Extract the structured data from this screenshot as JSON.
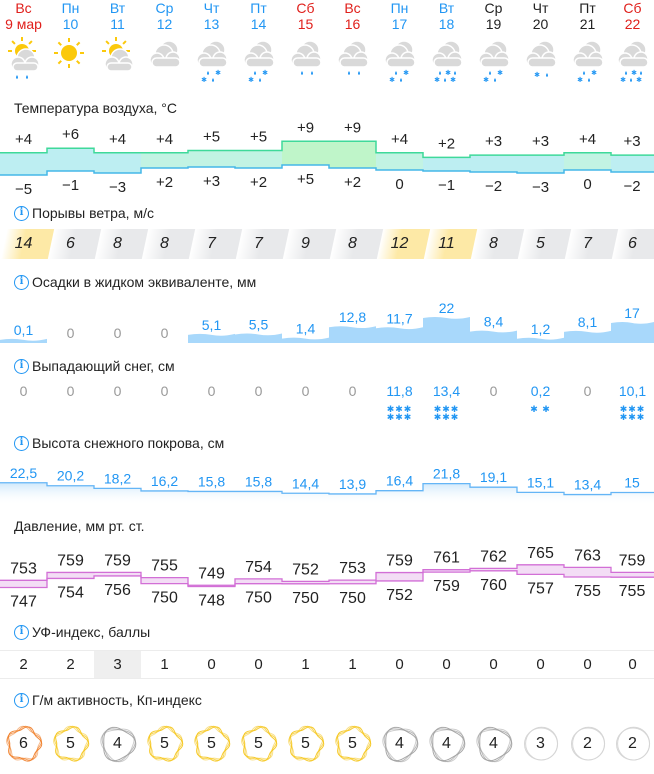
{
  "days": [
    {
      "dow": "Вс",
      "date": "9 мар",
      "color": "red",
      "weather": "partly-cloudy-rain-icon"
    },
    {
      "dow": "Пн",
      "date": "10",
      "color": "blue",
      "weather": "sun-icon"
    },
    {
      "dow": "Вт",
      "date": "11",
      "color": "blue",
      "weather": "partly-cloudy-icon"
    },
    {
      "dow": "Ср",
      "date": "12",
      "color": "blue",
      "weather": "cloudy-icon"
    },
    {
      "dow": "Чт",
      "date": "13",
      "color": "blue",
      "weather": "cloudy-rain-snow-icon"
    },
    {
      "dow": "Пт",
      "date": "14",
      "color": "blue",
      "weather": "cloudy-rain-snow-icon"
    },
    {
      "dow": "Сб",
      "date": "15",
      "color": "red",
      "weather": "cloudy-rain-icon"
    },
    {
      "dow": "Вс",
      "date": "16",
      "color": "red",
      "weather": "cloudy-rain-icon"
    },
    {
      "dow": "Пн",
      "date": "17",
      "color": "blue",
      "weather": "cloudy-rain-snow-icon"
    },
    {
      "dow": "Вт",
      "date": "18",
      "color": "blue",
      "weather": "cloudy-heavy-rain-snow-icon"
    },
    {
      "dow": "Ср",
      "date": "19",
      "color": "black",
      "weather": "cloudy-rain-snow-icon"
    },
    {
      "dow": "Чт",
      "date": "20",
      "color": "black",
      "weather": "cloudy-light-snow-icon"
    },
    {
      "dow": "Пт",
      "date": "21",
      "color": "black",
      "weather": "cloudy-rain-snow-icon"
    },
    {
      "dow": "Сб",
      "date": "22",
      "color": "red",
      "weather": "cloudy-heavy-rain-snow-icon"
    }
  ],
  "sections": {
    "temperature": "Температура воздуха, °C",
    "wind": "Порывы ветра, м/с",
    "precip": "Осадки в жидком эквиваленте, мм",
    "snowfall": "Выпадающий снег, см",
    "snow_depth": "Высота снежного покрова, см",
    "pressure": "Давление, мм рт. ст.",
    "uv": "УФ-индекс, баллы",
    "kp": "Г/м активность, Кп-индекс"
  },
  "colors": {
    "red": "#e0201c",
    "blue": "#2196f3",
    "black": "#222222",
    "wind_high": "#fde9a6",
    "wind_normal": "#e8e9eb",
    "precip_fill": "#a8d8fb",
    "pressure_line": "#d26fd6",
    "pressure_fill": "#f3ddf5",
    "kp_orange": "#f07b22",
    "kp_yellow": "#f5c518",
    "kp_gray": "#9e9e9e",
    "kp_light": "#d6d6d6"
  },
  "chart_data": [
    {
      "type": "area",
      "title": "Температура воздуха, °C",
      "categories": [
        "9 мар",
        "10",
        "11",
        "12",
        "13",
        "14",
        "15",
        "16",
        "17",
        "18",
        "19",
        "20",
        "21",
        "22"
      ],
      "series": [
        {
          "name": "max",
          "values": [
            4,
            6,
            4,
            4,
            5,
            5,
            9,
            9,
            4,
            2,
            3,
            3,
            4,
            3
          ],
          "labels": [
            "+4",
            "+6",
            "+4",
            "+4",
            "+5",
            "+5",
            "+9",
            "+9",
            "+4",
            "+2",
            "+3",
            "+3",
            "+4",
            "+3"
          ]
        },
        {
          "name": "min",
          "values": [
            -5,
            -1,
            -3,
            2,
            3,
            2,
            5,
            2,
            0,
            -1,
            -2,
            -3,
            0,
            -2
          ],
          "labels": [
            "−5",
            "−1",
            "−3",
            "+2",
            "+3",
            "+2",
            "+5",
            "+2",
            "0",
            "−1",
            "−2",
            "−3",
            "0",
            "−2"
          ]
        }
      ]
    },
    {
      "type": "table",
      "title": "Порывы ветра, м/с",
      "categories": [
        "9 мар",
        "10",
        "11",
        "12",
        "13",
        "14",
        "15",
        "16",
        "17",
        "18",
        "19",
        "20",
        "21",
        "22"
      ],
      "values": [
        14,
        6,
        8,
        8,
        7,
        7,
        9,
        8,
        12,
        11,
        8,
        5,
        7,
        6
      ],
      "highlight": [
        true,
        false,
        false,
        false,
        false,
        false,
        false,
        false,
        true,
        true,
        false,
        false,
        false,
        false
      ]
    },
    {
      "type": "bar",
      "title": "Осадки в жидком эквиваленте, мм",
      "categories": [
        "9 мар",
        "10",
        "11",
        "12",
        "13",
        "14",
        "15",
        "16",
        "17",
        "18",
        "19",
        "20",
        "21",
        "22"
      ],
      "values": [
        0.1,
        0,
        0,
        0,
        5.1,
        5.5,
        1.4,
        12.8,
        11.7,
        22,
        8.4,
        1.2,
        8.1,
        17
      ],
      "labels": [
        "0,1",
        "0",
        "0",
        "0",
        "5,1",
        "5,5",
        "1,4",
        "12,8",
        "11,7",
        "22",
        "8,4",
        "1,2",
        "8,1",
        "17"
      ]
    },
    {
      "type": "table",
      "title": "Выпадающий снег, см",
      "categories": [
        "9 мар",
        "10",
        "11",
        "12",
        "13",
        "14",
        "15",
        "16",
        "17",
        "18",
        "19",
        "20",
        "21",
        "22"
      ],
      "values": [
        0,
        0,
        0,
        0,
        0,
        0,
        0,
        0,
        11.8,
        13.4,
        0,
        0.2,
        0,
        10.1
      ],
      "labels": [
        "0",
        "0",
        "0",
        "0",
        "0",
        "0",
        "0",
        "0",
        "11,8",
        "13,4",
        "0",
        "0,2",
        "0",
        "10,1"
      ],
      "flakes": [
        "",
        "",
        "",
        "",
        "",
        "",
        "",
        "",
        "***\n***",
        "***\n***",
        "",
        "* *",
        "",
        "***\n***"
      ]
    },
    {
      "type": "line",
      "title": "Высота снежного покрова, см",
      "categories": [
        "9 мар",
        "10",
        "11",
        "12",
        "13",
        "14",
        "15",
        "16",
        "17",
        "18",
        "19",
        "20",
        "21",
        "22"
      ],
      "values": [
        22.5,
        20.2,
        18.2,
        16.2,
        15.8,
        15.8,
        14.4,
        13.9,
        16.4,
        21.8,
        19.1,
        15.1,
        13.4,
        15
      ],
      "labels": [
        "22,5",
        "20,2",
        "18,2",
        "16,2",
        "15,8",
        "15,8",
        "14,4",
        "13,9",
        "16,4",
        "21,8",
        "19,1",
        "15,1",
        "13,4",
        "15"
      ]
    },
    {
      "type": "area",
      "title": "Давление, мм рт. ст.",
      "categories": [
        "9 мар",
        "10",
        "11",
        "12",
        "13",
        "14",
        "15",
        "16",
        "17",
        "18",
        "19",
        "20",
        "21",
        "22"
      ],
      "series": [
        {
          "name": "max",
          "values": [
            753,
            759,
            759,
            755,
            749,
            754,
            752,
            753,
            759,
            761,
            762,
            765,
            763,
            759
          ]
        },
        {
          "name": "min",
          "values": [
            747,
            754,
            756,
            750,
            748,
            750,
            750,
            750,
            752,
            759,
            760,
            757,
            755,
            755
          ]
        }
      ]
    },
    {
      "type": "table",
      "title": "УФ-индекс, баллы",
      "categories": [
        "9 мар",
        "10",
        "11",
        "12",
        "13",
        "14",
        "15",
        "16",
        "17",
        "18",
        "19",
        "20",
        "21",
        "22"
      ],
      "values": [
        2,
        2,
        3,
        1,
        0,
        0,
        1,
        1,
        0,
        0,
        0,
        0,
        0,
        0
      ]
    },
    {
      "type": "table",
      "title": "Г/м активность, Кп-индекс",
      "categories": [
        "9 мар",
        "10",
        "11",
        "12",
        "13",
        "14",
        "15",
        "16",
        "17",
        "18",
        "19",
        "20",
        "21",
        "22"
      ],
      "values": [
        6,
        5,
        4,
        5,
        5,
        5,
        5,
        5,
        4,
        4,
        4,
        3,
        2,
        2
      ]
    }
  ]
}
